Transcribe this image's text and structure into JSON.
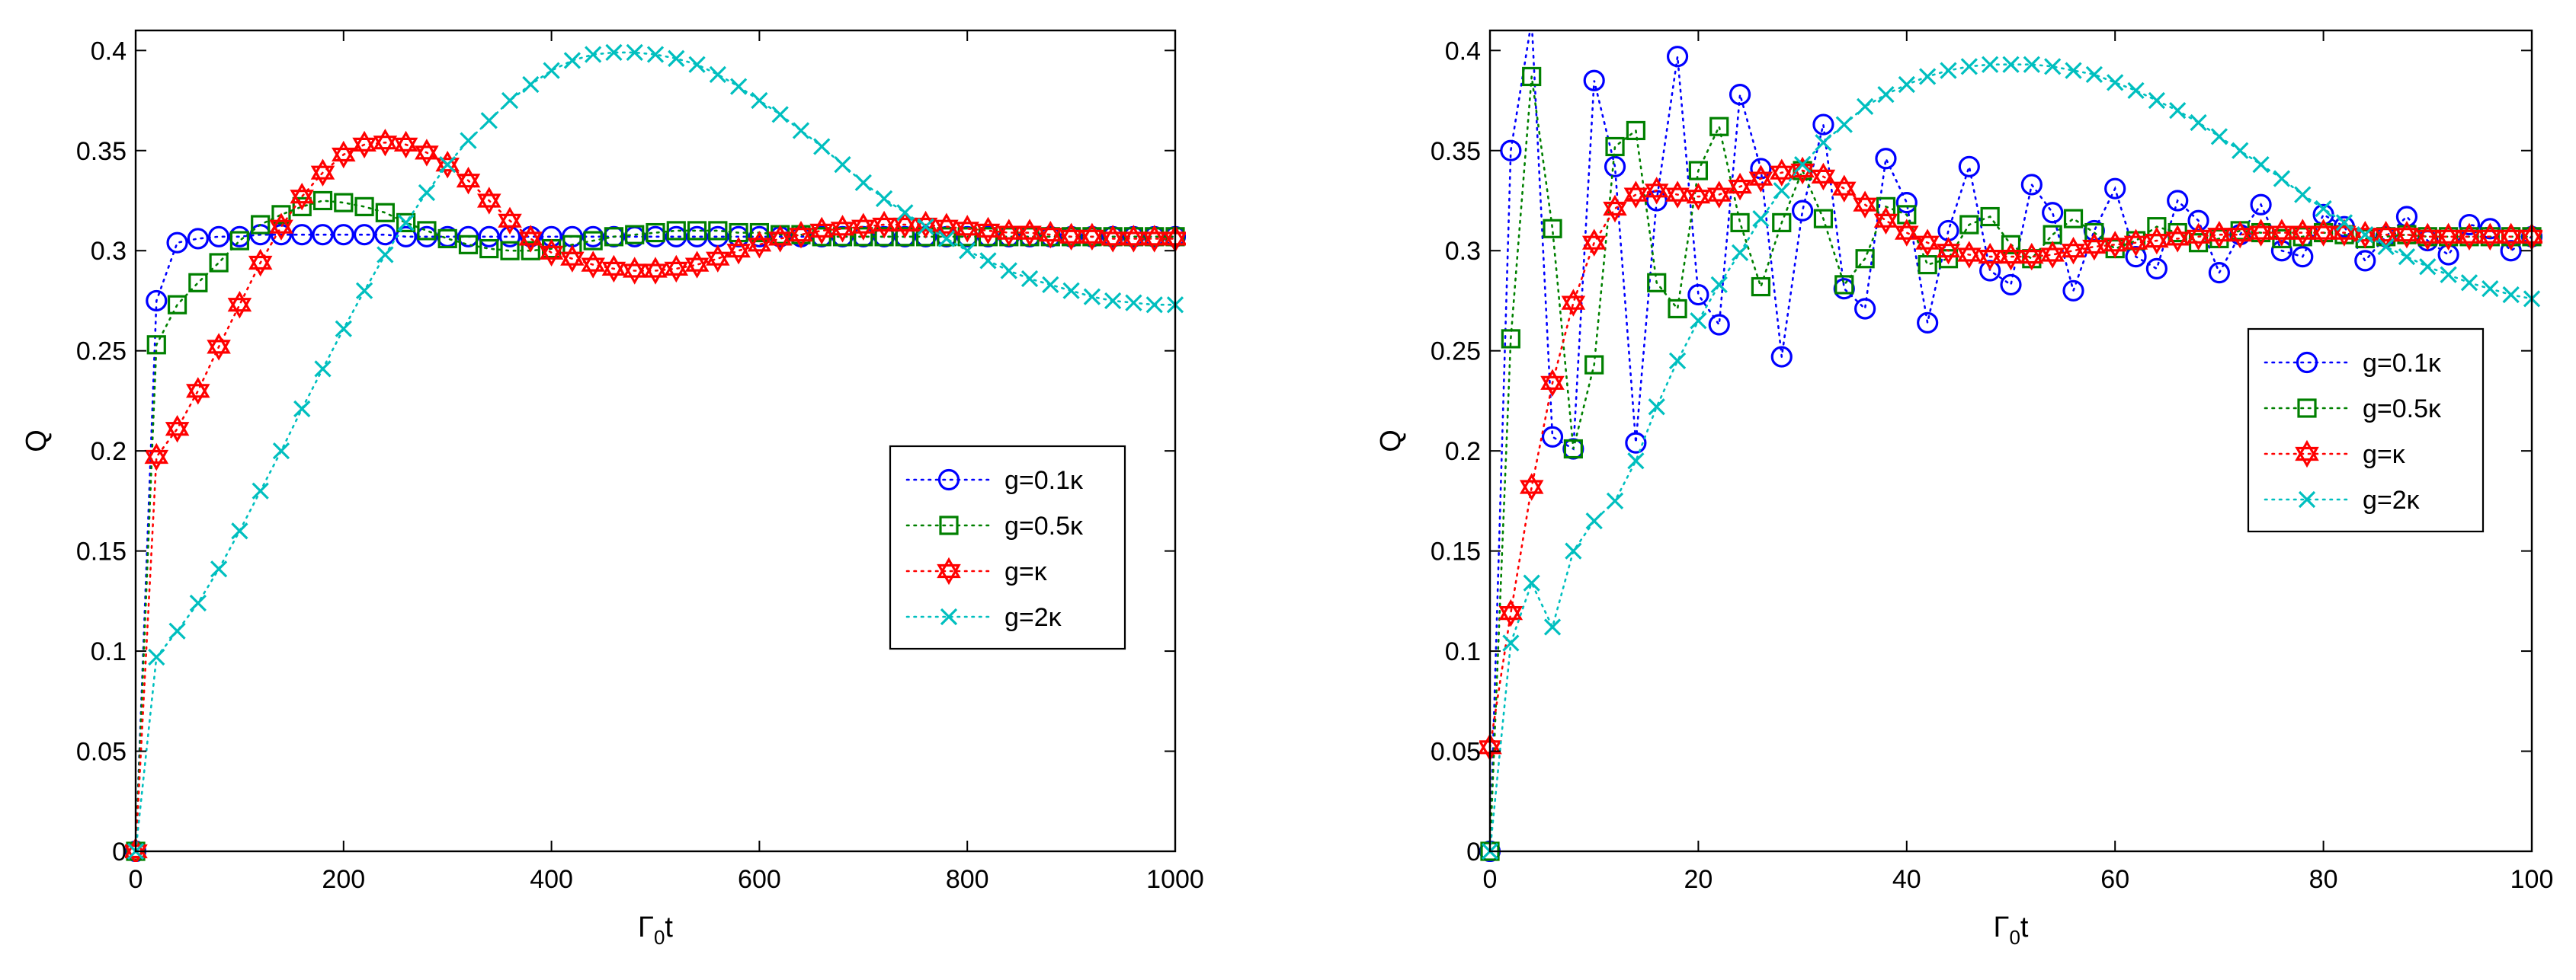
{
  "chart_data": [
    {
      "type": "line",
      "panel": "left",
      "title": "",
      "xlabel": "Γ0t",
      "xlabel_main": "Γ",
      "xlabel_sub": "0",
      "xlabel_tail": "t",
      "ylabel": "Q",
      "xlim": [
        0,
        1000
      ],
      "ylim": [
        0,
        0.41
      ],
      "xticks": [
        0,
        200,
        400,
        600,
        800,
        1000
      ],
      "xtick_labels": [
        "0",
        "200",
        "400",
        "600",
        "800",
        "1000"
      ],
      "yticks": [
        0,
        0.05,
        0.1,
        0.15,
        0.2,
        0.25,
        0.3,
        0.35,
        0.4
      ],
      "ytick_labels": [
        "0",
        "0.05",
        "0.1",
        "0.15",
        "0.2",
        "0.25",
        "0.3",
        "0.35",
        "0.4"
      ],
      "legend_position": "middle-right",
      "series": [
        {
          "name": "g=0.1κ",
          "marker": "circle",
          "color": "#0000ff",
          "x": [
            0,
            20,
            40,
            60,
            80,
            100,
            120,
            140,
            160,
            180,
            200,
            220,
            240,
            260,
            280,
            300,
            320,
            340,
            360,
            380,
            400,
            420,
            440,
            460,
            480,
            500,
            520,
            540,
            560,
            580,
            600,
            620,
            640,
            660,
            680,
            700,
            720,
            740,
            760,
            780,
            800,
            820,
            840,
            860,
            880,
            900,
            920,
            940,
            960,
            980,
            1000
          ],
          "y": [
            0,
            0.275,
            0.304,
            0.306,
            0.307,
            0.307,
            0.308,
            0.308,
            0.308,
            0.308,
            0.308,
            0.308,
            0.308,
            0.307,
            0.307,
            0.307,
            0.307,
            0.307,
            0.307,
            0.307,
            0.307,
            0.307,
            0.307,
            0.307,
            0.307,
            0.307,
            0.307,
            0.307,
            0.307,
            0.307,
            0.307,
            0.307,
            0.307,
            0.307,
            0.307,
            0.307,
            0.307,
            0.307,
            0.307,
            0.307,
            0.307,
            0.307,
            0.307,
            0.307,
            0.307,
            0.307,
            0.307,
            0.307,
            0.307,
            0.307,
            0.307
          ]
        },
        {
          "name": "g=0.5κ",
          "marker": "square",
          "color": "#008000",
          "x": [
            0,
            20,
            40,
            60,
            80,
            100,
            120,
            140,
            160,
            180,
            200,
            220,
            240,
            260,
            280,
            300,
            320,
            340,
            360,
            380,
            400,
            420,
            440,
            460,
            480,
            500,
            520,
            540,
            560,
            580,
            600,
            620,
            640,
            660,
            680,
            700,
            720,
            740,
            760,
            780,
            800,
            820,
            840,
            860,
            880,
            900,
            920,
            940,
            960,
            980,
            1000
          ],
          "y": [
            0,
            0.253,
            0.273,
            0.284,
            0.294,
            0.305,
            0.313,
            0.318,
            0.322,
            0.325,
            0.324,
            0.322,
            0.319,
            0.314,
            0.31,
            0.306,
            0.303,
            0.301,
            0.3,
            0.3,
            0.301,
            0.303,
            0.305,
            0.307,
            0.308,
            0.309,
            0.31,
            0.31,
            0.31,
            0.309,
            0.309,
            0.308,
            0.308,
            0.307,
            0.307,
            0.307,
            0.307,
            0.307,
            0.307,
            0.307,
            0.307,
            0.307,
            0.307,
            0.307,
            0.307,
            0.307,
            0.307,
            0.307,
            0.307,
            0.307,
            0.307
          ]
        },
        {
          "name": "g=κ",
          "marker": "hexagram",
          "color": "#ff0000",
          "x": [
            0,
            20,
            40,
            60,
            80,
            100,
            120,
            140,
            160,
            180,
            200,
            220,
            240,
            260,
            280,
            300,
            320,
            340,
            360,
            380,
            400,
            420,
            440,
            460,
            480,
            500,
            520,
            540,
            560,
            580,
            600,
            620,
            640,
            660,
            680,
            700,
            720,
            740,
            760,
            780,
            800,
            820,
            840,
            860,
            880,
            900,
            920,
            940,
            960,
            980,
            1000
          ],
          "y": [
            0,
            0.197,
            0.211,
            0.23,
            0.252,
            0.273,
            0.294,
            0.312,
            0.327,
            0.339,
            0.348,
            0.353,
            0.354,
            0.353,
            0.349,
            0.343,
            0.335,
            0.325,
            0.315,
            0.306,
            0.299,
            0.296,
            0.293,
            0.291,
            0.29,
            0.29,
            0.291,
            0.293,
            0.296,
            0.3,
            0.303,
            0.306,
            0.308,
            0.31,
            0.311,
            0.312,
            0.313,
            0.313,
            0.313,
            0.312,
            0.311,
            0.31,
            0.309,
            0.309,
            0.308,
            0.307,
            0.307,
            0.306,
            0.306,
            0.306,
            0.306
          ]
        },
        {
          "name": "g=2κ",
          "marker": "x",
          "color": "#00bfbf",
          "x": [
            0,
            20,
            40,
            60,
            80,
            100,
            120,
            140,
            160,
            180,
            200,
            220,
            240,
            260,
            280,
            300,
            320,
            340,
            360,
            380,
            400,
            420,
            440,
            460,
            480,
            500,
            520,
            540,
            560,
            580,
            600,
            620,
            640,
            660,
            680,
            700,
            720,
            740,
            760,
            780,
            800,
            820,
            840,
            860,
            880,
            900,
            920,
            940,
            960,
            980,
            1000
          ],
          "y": [
            0,
            0.097,
            0.11,
            0.124,
            0.141,
            0.16,
            0.18,
            0.2,
            0.221,
            0.241,
            0.261,
            0.28,
            0.298,
            0.314,
            0.329,
            0.343,
            0.355,
            0.365,
            0.375,
            0.383,
            0.39,
            0.395,
            0.398,
            0.399,
            0.399,
            0.398,
            0.396,
            0.393,
            0.388,
            0.382,
            0.375,
            0.368,
            0.36,
            0.352,
            0.343,
            0.334,
            0.326,
            0.319,
            0.312,
            0.306,
            0.3,
            0.295,
            0.29,
            0.286,
            0.283,
            0.28,
            0.277,
            0.275,
            0.274,
            0.273,
            0.273
          ]
        }
      ]
    },
    {
      "type": "line",
      "panel": "right",
      "title": "",
      "xlabel": "Γ0t",
      "xlabel_main": "Γ",
      "xlabel_sub": "0",
      "xlabel_tail": "t",
      "ylabel": "Q",
      "xlim": [
        0,
        100
      ],
      "ylim": [
        0,
        0.41
      ],
      "xticks": [
        0,
        20,
        40,
        60,
        80,
        100
      ],
      "xtick_labels": [
        "0",
        "20",
        "40",
        "60",
        "80",
        "100"
      ],
      "yticks": [
        0,
        0.05,
        0.1,
        0.15,
        0.2,
        0.25,
        0.3,
        0.35,
        0.4
      ],
      "ytick_labels": [
        "0",
        "0.05",
        "0.1",
        "0.15",
        "0.2",
        "0.25",
        "0.3",
        "0.35",
        "0.4"
      ],
      "legend_position": "middle-right",
      "series": [
        {
          "name": "g=0.1κ",
          "marker": "circle",
          "color": "#0000ff",
          "x": [
            0,
            2,
            4,
            6,
            8,
            10,
            12,
            14,
            16,
            18,
            20,
            22,
            24,
            26,
            28,
            30,
            32,
            34,
            36,
            38,
            40,
            42,
            44,
            46,
            48,
            50,
            52,
            54,
            56,
            58,
            60,
            62,
            64,
            66,
            68,
            70,
            72,
            74,
            76,
            78,
            80,
            82,
            84,
            86,
            88,
            90,
            92,
            94,
            96,
            98,
            100
          ],
          "y": [
            0,
            0.35,
            0.415,
            0.207,
            0.201,
            0.385,
            0.342,
            0.204,
            0.325,
            0.397,
            0.278,
            0.263,
            0.378,
            0.341,
            0.247,
            0.32,
            0.363,
            0.281,
            0.271,
            0.346,
            0.324,
            0.264,
            0.31,
            0.342,
            0.29,
            0.283,
            0.333,
            0.319,
            0.28,
            0.31,
            0.331,
            0.297,
            0.291,
            0.325,
            0.315,
            0.289,
            0.308,
            0.323,
            0.3,
            0.297,
            0.318,
            0.312,
            0.295,
            0.307,
            0.317,
            0.305,
            0.298,
            0.313,
            0.311,
            0.3,
            0.307
          ]
        },
        {
          "name": "g=0.5κ",
          "marker": "square",
          "color": "#008000",
          "x": [
            0,
            2,
            4,
            6,
            8,
            10,
            12,
            14,
            16,
            18,
            20,
            22,
            24,
            26,
            28,
            30,
            32,
            34,
            36,
            38,
            40,
            42,
            44,
            46,
            48,
            50,
            52,
            54,
            56,
            58,
            60,
            62,
            64,
            66,
            68,
            70,
            72,
            74,
            76,
            78,
            80,
            82,
            84,
            86,
            88,
            90,
            92,
            94,
            96,
            98,
            100
          ],
          "y": [
            0,
            0.256,
            0.387,
            0.311,
            0.201,
            0.243,
            0.352,
            0.36,
            0.284,
            0.271,
            0.34,
            0.362,
            0.314,
            0.282,
            0.314,
            0.34,
            0.316,
            0.283,
            0.296,
            0.322,
            0.318,
            0.293,
            0.296,
            0.313,
            0.317,
            0.303,
            0.296,
            0.308,
            0.316,
            0.309,
            0.301,
            0.305,
            0.312,
            0.309,
            0.304,
            0.306,
            0.31,
            0.309,
            0.306,
            0.307,
            0.309,
            0.308,
            0.306,
            0.307,
            0.308,
            0.307,
            0.307,
            0.307,
            0.307,
            0.307,
            0.307
          ]
        },
        {
          "name": "g=κ",
          "marker": "hexagram",
          "color": "#ff0000",
          "x": [
            0,
            2,
            4,
            6,
            8,
            10,
            12,
            14,
            16,
            18,
            20,
            22,
            24,
            26,
            28,
            30,
            32,
            34,
            36,
            38,
            40,
            42,
            44,
            46,
            48,
            50,
            52,
            54,
            56,
            58,
            60,
            62,
            64,
            66,
            68,
            70,
            72,
            74,
            76,
            78,
            80,
            82,
            84,
            86,
            88,
            90,
            92,
            94,
            96,
            98,
            100
          ],
          "y": [
            0.052,
            0.119,
            0.182,
            0.234,
            0.274,
            0.304,
            0.321,
            0.328,
            0.33,
            0.328,
            0.327,
            0.328,
            0.332,
            0.336,
            0.339,
            0.34,
            0.337,
            0.331,
            0.323,
            0.315,
            0.309,
            0.304,
            0.3,
            0.298,
            0.297,
            0.297,
            0.297,
            0.298,
            0.3,
            0.302,
            0.303,
            0.304,
            0.305,
            0.306,
            0.307,
            0.308,
            0.308,
            0.309,
            0.309,
            0.309,
            0.309,
            0.309,
            0.308,
            0.308,
            0.308,
            0.307,
            0.307,
            0.307,
            0.307,
            0.307,
            0.307
          ]
        },
        {
          "name": "g=2κ",
          "marker": "x",
          "color": "#00bfbf",
          "x": [
            0,
            2,
            4,
            6,
            8,
            10,
            12,
            14,
            16,
            18,
            20,
            22,
            24,
            26,
            28,
            30,
            32,
            34,
            36,
            38,
            40,
            42,
            44,
            46,
            48,
            50,
            52,
            54,
            56,
            58,
            60,
            62,
            64,
            66,
            68,
            70,
            72,
            74,
            76,
            78,
            80,
            82,
            84,
            86,
            88,
            90,
            92,
            94,
            96,
            98,
            100
          ],
          "y": [
            0,
            0.104,
            0.134,
            0.112,
            0.15,
            0.165,
            0.175,
            0.195,
            0.222,
            0.245,
            0.265,
            0.283,
            0.299,
            0.316,
            0.33,
            0.343,
            0.354,
            0.363,
            0.372,
            0.378,
            0.383,
            0.387,
            0.39,
            0.392,
            0.393,
            0.393,
            0.393,
            0.392,
            0.39,
            0.388,
            0.384,
            0.38,
            0.375,
            0.37,
            0.364,
            0.357,
            0.35,
            0.343,
            0.336,
            0.328,
            0.321,
            0.314,
            0.308,
            0.302,
            0.297,
            0.292,
            0.288,
            0.284,
            0.281,
            0.278,
            0.276
          ]
        }
      ]
    }
  ]
}
